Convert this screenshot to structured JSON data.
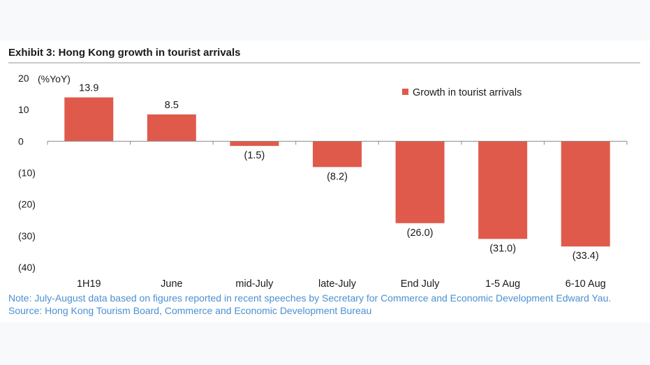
{
  "title": "Exhibit 3: Hong Kong growth in tourist arrivals",
  "note": "Note: July-August data based on figures reported in recent speeches by Secretary for Commerce and Economic Development Edward Yau. Source: Hong Kong Tourism Board, Commerce and Economic Development Bureau",
  "chart_data": {
    "type": "bar",
    "categories": [
      "1H19",
      "June",
      "mid-July",
      "late-July",
      "End July",
      "1-5 Aug",
      "6-10 Aug"
    ],
    "series": [
      {
        "name": "Growth in tourist arrivals",
        "values": [
          13.9,
          8.5,
          -1.5,
          -8.2,
          -26.0,
          -31.0,
          -33.4
        ],
        "labels": [
          "13.9",
          "8.5",
          "(1.5)",
          "(8.2)",
          "(26.0)",
          "(31.0)",
          "(33.4)"
        ],
        "color": "#e05a4c"
      }
    ],
    "ylim": [
      -40,
      20
    ],
    "yticks": [
      20,
      10,
      0,
      -10,
      -20,
      -30,
      -40
    ],
    "ytick_labels": [
      "20",
      "10",
      "0",
      "(10)",
      "(20)",
      "(30)",
      "(40)"
    ],
    "yunit": "(%YoY)",
    "legend_position": "top-right",
    "grid": false
  }
}
